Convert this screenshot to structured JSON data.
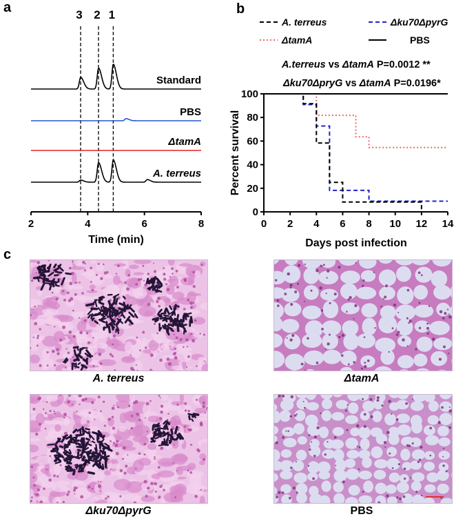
{
  "panels": {
    "a": "a",
    "b": "b",
    "c": "c"
  },
  "chart_data": [
    {
      "id": "a",
      "type": "line",
      "title": "",
      "xlabel": "Time (min)",
      "ylabel": "",
      "xlim": [
        2,
        8
      ],
      "x_ticks": [
        "2",
        "4",
        "6",
        "8"
      ],
      "peak_labels": [
        {
          "label": "3",
          "x": 3.75
        },
        {
          "label": "2",
          "x": 4.38
        },
        {
          "label": "1",
          "x": 4.9
        }
      ],
      "series": [
        {
          "name": "Standard",
          "color": "#000000",
          "peaks": [
            {
              "x": 3.75,
              "height": 0.45
            },
            {
              "x": 4.38,
              "height": 0.8
            },
            {
              "x": 4.9,
              "height": 0.95
            }
          ]
        },
        {
          "name": "PBS",
          "color": "#2255cc",
          "peaks": [
            {
              "x": 5.35,
              "height": 0.08
            }
          ]
        },
        {
          "name": "ΔtamA",
          "color": "#dd2222",
          "peaks": []
        },
        {
          "name": "A. terreus",
          "color": "#000000",
          "peaks": [
            {
              "x": 3.75,
              "height": 0.08
            },
            {
              "x": 4.38,
              "height": 0.75
            },
            {
              "x": 4.9,
              "height": 0.85
            },
            {
              "x": 6.1,
              "height": 0.1
            }
          ]
        }
      ]
    },
    {
      "id": "b",
      "type": "line",
      "title": "",
      "xlabel": "Days post infection",
      "ylabel": "Percent survival",
      "xlim": [
        0,
        14
      ],
      "ylim": [
        0,
        100
      ],
      "x_ticks": [
        "0",
        "2",
        "4",
        "6",
        "8",
        "10",
        "12",
        "14"
      ],
      "y_ticks": [
        "0",
        "20",
        "40",
        "60",
        "80",
        "100"
      ],
      "annotations": [
        {
          "strain1": "A.terreus",
          "vs": " vs ",
          "strain2": "ΔtamA",
          "stat": " P=0.0012 **"
        },
        {
          "strain1": "Δku70ΔpryG",
          "vs": " vs ",
          "strain2": "ΔtamA",
          "stat": " P=0.0196*"
        }
      ],
      "legend": [
        "A. terreus",
        "Δku70ΔpyrG",
        "ΔtamA",
        "PBS"
      ],
      "series": [
        {
          "name": "A. terreus",
          "color": "#000000",
          "style": "dashed",
          "x": [
            0,
            3,
            4,
            5,
            6,
            8,
            12,
            14
          ],
          "y": [
            100,
            91.7,
            58.3,
            25,
            8.3,
            8.3,
            0,
            0
          ]
        },
        {
          "name": "Δku70ΔpyrG",
          "color": "#2222cc",
          "style": "dashed",
          "x": [
            0,
            3,
            4,
            5,
            8,
            14
          ],
          "y": [
            100,
            90.9,
            72.7,
            18.2,
            9.1,
            9.1
          ]
        },
        {
          "name": "ΔtamA",
          "color": "#ee6666",
          "style": "dotted",
          "x": [
            0,
            4,
            7,
            8,
            14
          ],
          "y": [
            100,
            81.8,
            63.6,
            54.5,
            54.5
          ]
        },
        {
          "name": "PBS",
          "color": "#000000",
          "style": "solid",
          "x": [
            0,
            14
          ],
          "y": [
            100,
            100
          ]
        }
      ]
    }
  ],
  "histology": [
    {
      "caption": "A. terreus"
    },
    {
      "caption": "ΔtamA"
    },
    {
      "caption": "Δku70ΔpyrG"
    },
    {
      "caption": "PBS"
    }
  ],
  "colors": {
    "tissue_pink": "#e7a9d8",
    "fungus_dark": "#241537",
    "alveoli_bg": "#dcdcf0"
  }
}
